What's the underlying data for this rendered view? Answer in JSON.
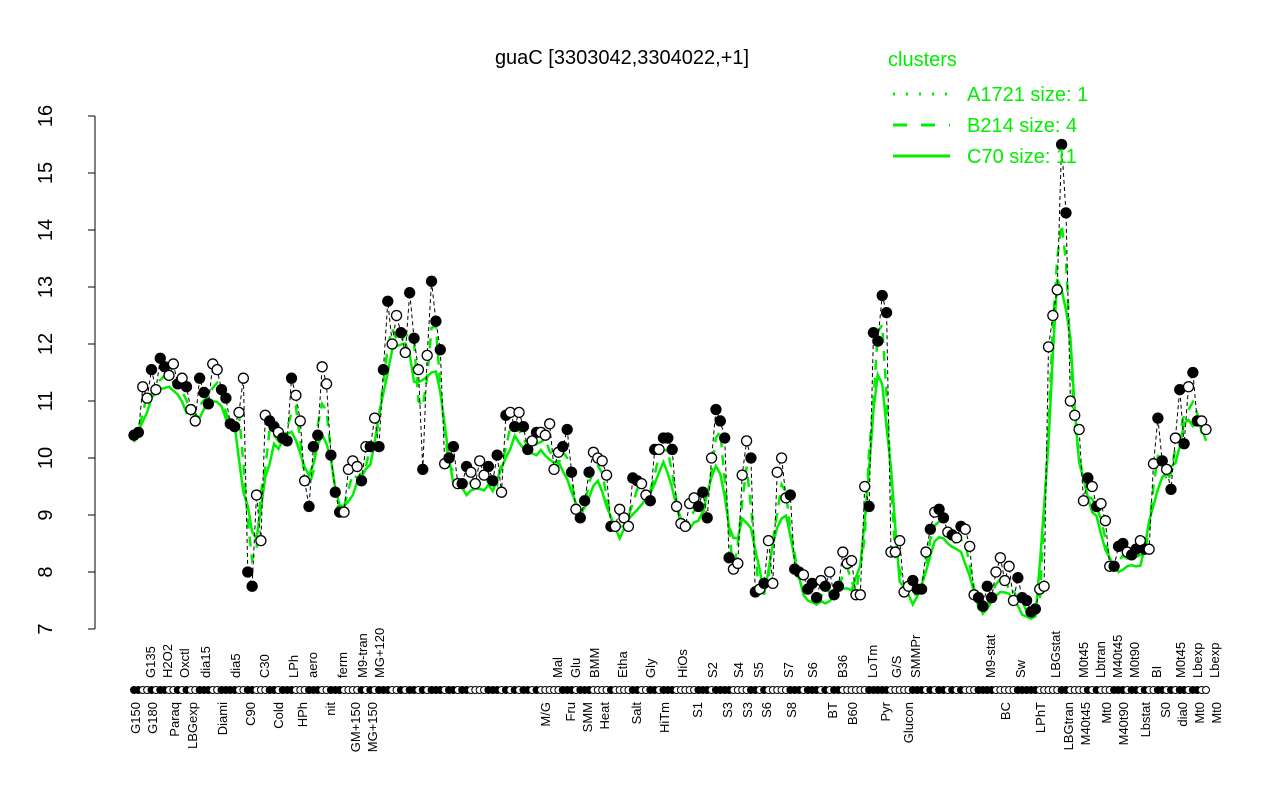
{
  "chart_data": {
    "type": "line",
    "title": "guaC [3303042,3304022,+1]",
    "xlabel": "",
    "ylabel": "",
    "ylim": [
      7,
      16
    ],
    "yticks": [
      7,
      8,
      9,
      10,
      11,
      12,
      13,
      14,
      15,
      16
    ],
    "grid": false,
    "legend": {
      "position": "top-right",
      "title": "clusters",
      "entries": [
        {
          "name": "A1721 size: 1",
          "style": "dotted",
          "color": "#00ee00"
        },
        {
          "name": "B214 size: 4",
          "style": "dashed",
          "color": "#00ee00"
        },
        {
          "name": "C70 size: 11",
          "style": "solid",
          "color": "#00ee00"
        }
      ]
    },
    "colors": {
      "cluster": "#00ee00",
      "points": "#000000"
    },
    "values": [
      10.4,
      10.45,
      11.25,
      11.05,
      11.55,
      11.2,
      11.75,
      11.6,
      11.45,
      11.65,
      11.3,
      11.4,
      11.25,
      10.85,
      10.65,
      11.4,
      11.15,
      10.95,
      11.65,
      11.55,
      11.2,
      11.05,
      10.6,
      10.55,
      10.8,
      11.4,
      8.0,
      7.75,
      9.35,
      8.55,
      10.75,
      10.65,
      10.55,
      10.45,
      10.35,
      10.3,
      11.4,
      11.1,
      10.65,
      9.6,
      9.15,
      10.2,
      10.4,
      11.6,
      11.3,
      10.05,
      9.4,
      9.05,
      9.05,
      9.8,
      9.95,
      9.85,
      9.6,
      10.2,
      10.2,
      10.7,
      10.2,
      11.55,
      12.75,
      12.0,
      12.5,
      12.2,
      11.85,
      12.9,
      12.1,
      11.55,
      9.8,
      11.8,
      13.1,
      12.4,
      11.9,
      9.9,
      10.0,
      10.2,
      9.55,
      9.55,
      9.85,
      9.75,
      9.55,
      9.95,
      9.7,
      9.85,
      9.6,
      10.05,
      9.4,
      10.75,
      10.8,
      10.55,
      10.8,
      10.55,
      10.15,
      10.3,
      10.45,
      10.45,
      10.4,
      10.6,
      9.8,
      10.1,
      10.2,
      10.5,
      9.75,
      9.1,
      8.95,
      9.25,
      9.75,
      10.1,
      10.0,
      9.95,
      9.7,
      8.8,
      8.8,
      9.1,
      8.95,
      8.8,
      9.65,
      9.6,
      9.55,
      9.35,
      9.25,
      10.15,
      10.15,
      10.35,
      10.35,
      10.15,
      9.15,
      8.85,
      8.8,
      9.2,
      9.3,
      9.15,
      9.4,
      8.95,
      10.0,
      10.85,
      10.65,
      10.35,
      8.25,
      8.05,
      8.15,
      9.7,
      10.3,
      10.0,
      7.65,
      7.7,
      7.8,
      8.55,
      7.8,
      9.75,
      10.0,
      9.3,
      9.35,
      8.05,
      8.0,
      7.95,
      7.7,
      7.8,
      7.55,
      7.85,
      7.75,
      8.0,
      7.6,
      7.75,
      8.35,
      8.15,
      8.2,
      7.6,
      7.6,
      9.5,
      9.15,
      12.2,
      12.05,
      12.85,
      12.55,
      8.35,
      8.35,
      8.55,
      7.65,
      7.75,
      7.85,
      7.7,
      7.7,
      8.35,
      8.75,
      9.05,
      9.1,
      8.95,
      8.7,
      8.65,
      8.6,
      8.8,
      8.75,
      8.45,
      7.6,
      7.55,
      7.4,
      7.75,
      7.55,
      8.0,
      8.25,
      7.85,
      8.1,
      7.5,
      7.9,
      7.55,
      7.5,
      7.3,
      7.35,
      7.7,
      7.75,
      11.95,
      12.5,
      12.95,
      15.5,
      14.3,
      11.0,
      10.75,
      10.5,
      9.25,
      9.65,
      9.5,
      9.15,
      9.2,
      8.9,
      8.1,
      8.1,
      8.45,
      8.5,
      8.35,
      8.3,
      8.4,
      8.55,
      8.4,
      8.4,
      9.9,
      10.7,
      9.95,
      9.8,
      9.45,
      10.35,
      11.2,
      10.25,
      11.25,
      11.5,
      10.65,
      10.65,
      10.5
    ],
    "filled": "1100101100101001110011110011000110111000111001110000101011100101101011101101100001110101011010000011101110000100001100110111000001110111100001101000001110111010110000001111100000111010110101000111100000111110000011000010100011101101001101011011001011101010",
    "x_labels_bottom": [
      "G150",
      "G180",
      "Paraq",
      "LBGexp",
      "Diami",
      "C90",
      "Cold",
      "HPh",
      "nit",
      "GM+150",
      "MG+150",
      "M/G",
      "Fru",
      "SMM",
      "Heat",
      "Salt",
      "HiTm",
      "S1",
      "S3",
      "S3",
      "S6",
      "S8",
      "BT",
      "B60",
      "Pyr",
      "Glucon",
      "BC",
      "LPhT",
      "LBGtran",
      "M40t45",
      "Mt0",
      "M40t90",
      "Lbstat",
      "S0",
      "dia0",
      "Mt0",
      "Mt0"
    ],
    "x_labels_top": [
      "G135",
      "H2O2",
      "Oxctl",
      "dia15",
      "dia5",
      "C30",
      "LPh",
      "aero",
      "ferm",
      "M9-tran",
      "MG+120",
      "Mal",
      "Glu",
      "BMM",
      "Etha",
      "Gly",
      "HiOs",
      "S2",
      "S4",
      "S5",
      "S7",
      "S6",
      "B36",
      "LoTm",
      "G/S",
      "SMMPr",
      "M9-stat",
      "Sw",
      "LBGstat",
      "M0t45",
      "Lbtran",
      "M40t45",
      "M0t90",
      "BI",
      "M0t45",
      "Lbexp",
      "Lbexp"
    ]
  }
}
